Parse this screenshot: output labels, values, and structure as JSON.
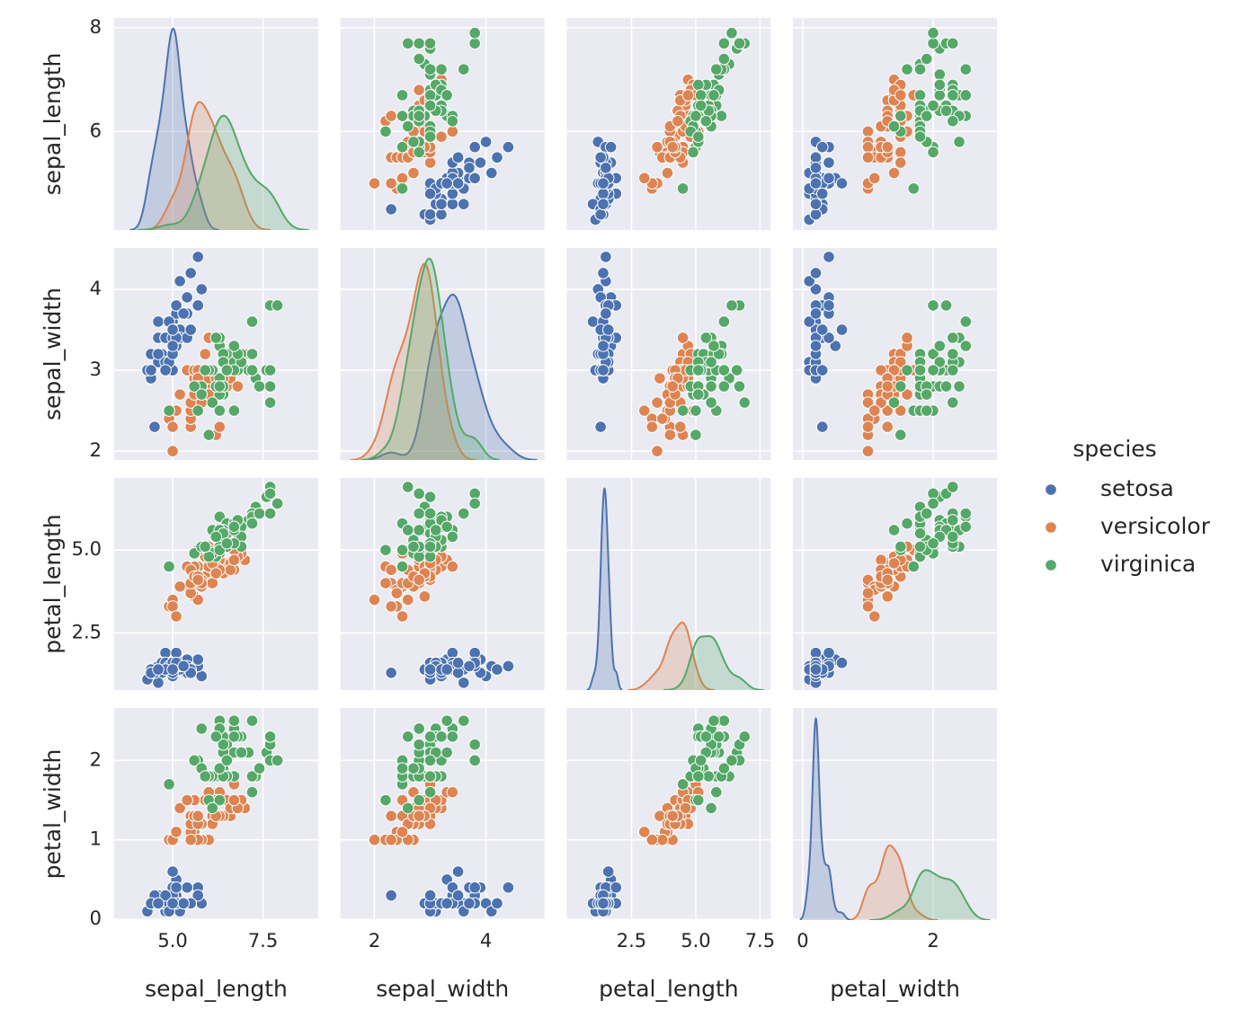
{
  "chart_data": {
    "type": "pairplot",
    "legend_title": "species",
    "legend": "right",
    "variables": [
      {
        "name": "sepal_length",
        "xlim": [
          3.38,
          9.03
        ],
        "xticks": [
          {
            "value": 5,
            "label": "5.0"
          },
          {
            "value": 7.5,
            "label": "7.5"
          }
        ],
        "ylim": [
          4.1,
          8.19
        ],
        "yticks": [
          6,
          8
        ]
      },
      {
        "name": "sepal_width",
        "xlim": [
          1.39,
          5.05
        ],
        "xticks": [
          2,
          4
        ],
        "ylim": [
          1.89,
          4.51
        ],
        "yticks": [
          2,
          3,
          4
        ]
      },
      {
        "name": "petal_length",
        "xlim": [
          -0.02,
          7.92
        ],
        "xticks": [
          2.5,
          {
            "value": 5,
            "label": "5.0"
          },
          7.5
        ],
        "ylim": [
          0.78,
          7.17
        ],
        "yticks": [
          2.5,
          {
            "value": 5,
            "label": "5.0"
          }
        ]
      },
      {
        "name": "petal_width",
        "xlim": [
          -0.15,
          2.98
        ],
        "xticks": [
          0,
          2
        ],
        "ylim": [
          -0.01,
          2.66
        ],
        "yticks": [
          0,
          1,
          2
        ]
      }
    ],
    "series": [
      {
        "name": "setosa",
        "color": "#4c72b0",
        "values": {
          "sepal_length": [
            5.1,
            4.9,
            4.7,
            4.6,
            5.0,
            5.4,
            4.6,
            5.0,
            4.4,
            4.9,
            5.4,
            4.8,
            4.8,
            4.3,
            5.8,
            5.7,
            5.4,
            5.1,
            5.7,
            5.1,
            5.4,
            5.1,
            4.6,
            5.1,
            4.8,
            5.0,
            5.0,
            5.2,
            5.2,
            4.7,
            4.8,
            5.4,
            5.2,
            5.5,
            4.9,
            5.0,
            5.5,
            4.9,
            4.4,
            5.1,
            5.0,
            4.5,
            4.4,
            5.0,
            5.1,
            4.8,
            5.1,
            4.6,
            5.3,
            5.0
          ],
          "sepal_width": [
            3.5,
            3.0,
            3.2,
            3.1,
            3.6,
            3.9,
            3.4,
            3.4,
            2.9,
            3.1,
            3.7,
            3.4,
            3.0,
            3.0,
            4.0,
            4.4,
            3.9,
            3.5,
            3.8,
            3.8,
            3.4,
            3.7,
            3.6,
            3.3,
            3.4,
            3.0,
            3.4,
            3.5,
            3.4,
            3.2,
            3.1,
            3.4,
            4.1,
            4.2,
            3.1,
            3.2,
            3.5,
            3.6,
            3.0,
            3.4,
            3.5,
            2.3,
            3.2,
            3.5,
            3.8,
            3.0,
            3.8,
            3.2,
            3.7,
            3.3
          ],
          "petal_length": [
            1.4,
            1.4,
            1.3,
            1.5,
            1.4,
            1.7,
            1.4,
            1.5,
            1.4,
            1.5,
            1.5,
            1.6,
            1.4,
            1.1,
            1.2,
            1.5,
            1.3,
            1.4,
            1.7,
            1.5,
            1.7,
            1.5,
            1.0,
            1.7,
            1.9,
            1.6,
            1.6,
            1.5,
            1.4,
            1.6,
            1.6,
            1.5,
            1.5,
            1.4,
            1.5,
            1.2,
            1.3,
            1.4,
            1.3,
            1.5,
            1.3,
            1.3,
            1.3,
            1.6,
            1.9,
            1.4,
            1.6,
            1.4,
            1.5,
            1.4
          ],
          "petal_width": [
            0.2,
            0.2,
            0.2,
            0.2,
            0.2,
            0.4,
            0.3,
            0.2,
            0.2,
            0.1,
            0.2,
            0.2,
            0.1,
            0.1,
            0.2,
            0.4,
            0.4,
            0.3,
            0.3,
            0.3,
            0.2,
            0.4,
            0.2,
            0.5,
            0.2,
            0.2,
            0.4,
            0.2,
            0.2,
            0.2,
            0.2,
            0.4,
            0.1,
            0.2,
            0.2,
            0.2,
            0.2,
            0.1,
            0.2,
            0.2,
            0.3,
            0.3,
            0.2,
            0.6,
            0.4,
            0.3,
            0.2,
            0.2,
            0.2,
            0.2
          ]
        }
      },
      {
        "name": "versicolor",
        "color": "#dd8452",
        "values": {
          "sepal_length": [
            7.0,
            6.4,
            6.9,
            5.5,
            6.5,
            5.7,
            6.3,
            4.9,
            6.6,
            5.2,
            5.0,
            5.9,
            6.0,
            6.1,
            5.6,
            6.7,
            5.6,
            5.8,
            6.2,
            5.6,
            5.9,
            6.1,
            6.3,
            6.1,
            6.4,
            6.6,
            6.8,
            6.7,
            6.0,
            5.7,
            5.5,
            5.5,
            5.8,
            6.0,
            5.4,
            6.0,
            6.7,
            6.3,
            5.6,
            5.5,
            5.5,
            6.1,
            5.8,
            5.0,
            5.6,
            5.7,
            5.7,
            6.2,
            5.1,
            5.7
          ],
          "sepal_width": [
            3.2,
            3.2,
            3.1,
            2.3,
            2.8,
            2.8,
            3.3,
            2.4,
            2.9,
            2.7,
            2.0,
            3.0,
            2.2,
            2.9,
            2.9,
            3.1,
            3.0,
            2.7,
            2.2,
            2.5,
            3.2,
            2.8,
            2.5,
            2.8,
            2.9,
            3.0,
            2.8,
            3.0,
            2.9,
            2.6,
            2.4,
            2.4,
            2.7,
            2.7,
            3.0,
            3.4,
            3.1,
            2.3,
            3.0,
            2.5,
            2.6,
            3.0,
            2.6,
            2.3,
            2.7,
            3.0,
            2.9,
            2.9,
            2.5,
            2.8
          ],
          "petal_length": [
            4.7,
            4.5,
            4.9,
            4.0,
            4.6,
            4.5,
            4.7,
            3.3,
            4.6,
            3.9,
            3.5,
            4.2,
            4.0,
            4.7,
            3.6,
            4.4,
            4.5,
            4.1,
            4.5,
            3.9,
            4.8,
            4.0,
            4.9,
            4.7,
            4.3,
            4.4,
            4.8,
            5.0,
            4.5,
            3.5,
            3.8,
            3.7,
            3.9,
            5.1,
            4.5,
            4.5,
            4.7,
            4.4,
            4.1,
            4.0,
            4.4,
            4.6,
            4.0,
            3.3,
            4.2,
            4.2,
            4.2,
            4.3,
            3.0,
            4.1
          ],
          "petal_width": [
            1.4,
            1.5,
            1.5,
            1.3,
            1.5,
            1.3,
            1.6,
            1.0,
            1.3,
            1.4,
            1.0,
            1.5,
            1.0,
            1.4,
            1.3,
            1.4,
            1.5,
            1.0,
            1.5,
            1.1,
            1.8,
            1.3,
            1.5,
            1.2,
            1.3,
            1.4,
            1.4,
            1.7,
            1.5,
            1.0,
            1.1,
            1.0,
            1.2,
            1.6,
            1.5,
            1.6,
            1.5,
            1.3,
            1.3,
            1.3,
            1.2,
            1.4,
            1.2,
            1.0,
            1.3,
            1.2,
            1.3,
            1.3,
            1.1,
            1.3
          ]
        }
      },
      {
        "name": "virginica",
        "color": "#55a868",
        "values": {
          "sepal_length": [
            6.3,
            5.8,
            7.1,
            6.3,
            6.5,
            7.6,
            4.9,
            7.3,
            6.7,
            7.2,
            6.5,
            6.4,
            6.8,
            5.7,
            5.8,
            6.4,
            6.5,
            7.7,
            7.7,
            6.0,
            6.9,
            5.6,
            7.7,
            6.3,
            6.7,
            7.2,
            6.2,
            6.1,
            6.4,
            7.2,
            7.4,
            7.9,
            6.4,
            6.3,
            6.1,
            7.7,
            6.3,
            6.4,
            6.0,
            6.9,
            6.7,
            6.9,
            5.8,
            6.8,
            6.7,
            6.7,
            6.3,
            6.5,
            6.2,
            5.9
          ],
          "sepal_width": [
            3.3,
            2.7,
            3.0,
            2.9,
            3.0,
            3.0,
            2.5,
            2.9,
            2.5,
            3.6,
            3.2,
            2.7,
            3.0,
            2.5,
            2.8,
            3.2,
            3.0,
            3.8,
            2.6,
            2.2,
            3.2,
            2.8,
            2.8,
            2.7,
            3.3,
            3.2,
            2.8,
            3.0,
            2.8,
            3.0,
            2.8,
            3.8,
            2.8,
            2.8,
            2.6,
            3.0,
            3.4,
            3.1,
            3.0,
            3.1,
            3.1,
            3.1,
            2.7,
            3.2,
            3.3,
            3.0,
            2.5,
            3.0,
            3.4,
            3.0
          ],
          "petal_length": [
            6.0,
            5.1,
            5.9,
            5.6,
            5.8,
            6.6,
            4.5,
            6.3,
            5.8,
            6.1,
            5.1,
            5.3,
            5.5,
            5.0,
            5.1,
            5.3,
            5.5,
            6.7,
            6.9,
            5.0,
            5.7,
            4.9,
            6.7,
            4.9,
            5.7,
            6.0,
            4.8,
            4.9,
            5.6,
            5.8,
            6.1,
            6.4,
            5.6,
            5.1,
            5.6,
            6.1,
            5.6,
            5.5,
            4.8,
            5.4,
            5.6,
            5.1,
            5.1,
            5.9,
            5.7,
            5.2,
            5.0,
            5.2,
            5.4,
            5.1
          ],
          "petal_width": [
            2.5,
            1.9,
            2.1,
            1.8,
            2.2,
            2.1,
            1.7,
            1.8,
            1.8,
            2.5,
            2.0,
            1.9,
            2.1,
            2.0,
            2.4,
            2.3,
            1.8,
            2.2,
            2.3,
            1.5,
            2.3,
            2.0,
            2.0,
            1.8,
            2.1,
            1.8,
            1.8,
            1.8,
            2.1,
            1.6,
            1.9,
            2.0,
            2.2,
            1.5,
            1.4,
            2.3,
            2.4,
            1.8,
            1.8,
            2.1,
            2.4,
            2.3,
            1.9,
            2.3,
            2.5,
            2.3,
            1.9,
            2.0,
            2.3,
            1.8
          ]
        }
      }
    ]
  }
}
